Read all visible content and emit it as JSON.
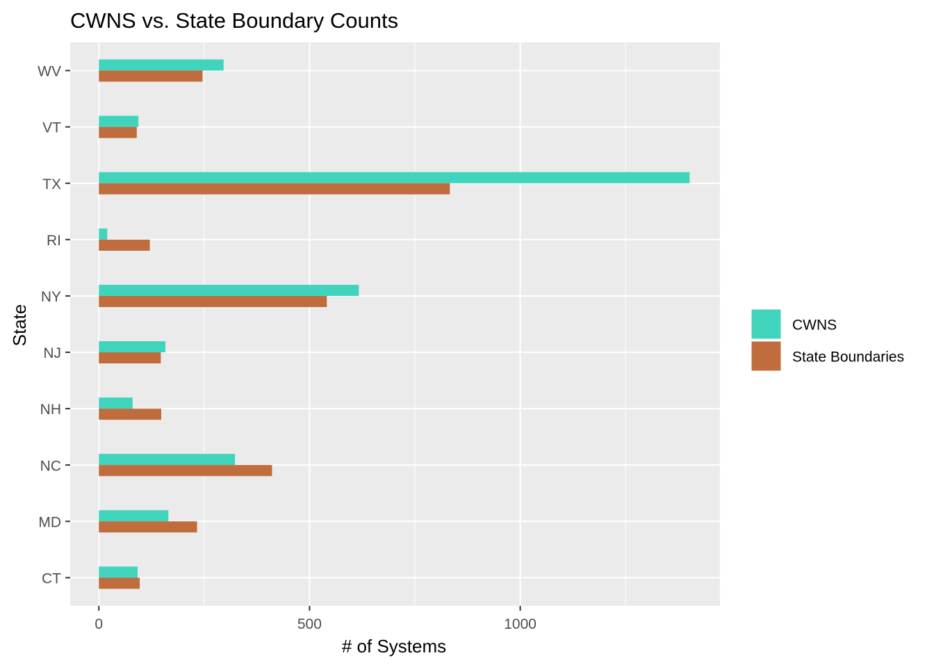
{
  "chart_data": {
    "type": "bar",
    "orientation": "horizontal",
    "title": "CWNS vs. State Boundary Counts",
    "xlabel": "# of Systems",
    "ylabel": "State",
    "categories": [
      "CT",
      "MD",
      "NC",
      "NH",
      "NJ",
      "NY",
      "RI",
      "TX",
      "VT",
      "WV"
    ],
    "series": [
      {
        "name": "CWNS",
        "color": "#40d4bd",
        "values": [
          92,
          165,
          323,
          80,
          158,
          617,
          20,
          1402,
          94,
          296
        ]
      },
      {
        "name": "State Boundaries",
        "color": "#c06c3c",
        "values": [
          97,
          233,
          411,
          148,
          147,
          541,
          121,
          833,
          90,
          246
        ]
      }
    ],
    "xlim": [
      -68,
      1474
    ],
    "x_ticks": [
      0,
      500,
      1000
    ],
    "x_tick_labels": [
      "0",
      "500",
      "1000"
    ],
    "x_minor_ticks": [
      250,
      750,
      1250
    ],
    "grid": true,
    "panel_background": "#ebebeb",
    "grid_color": "#ffffff",
    "legend_position": "right"
  }
}
